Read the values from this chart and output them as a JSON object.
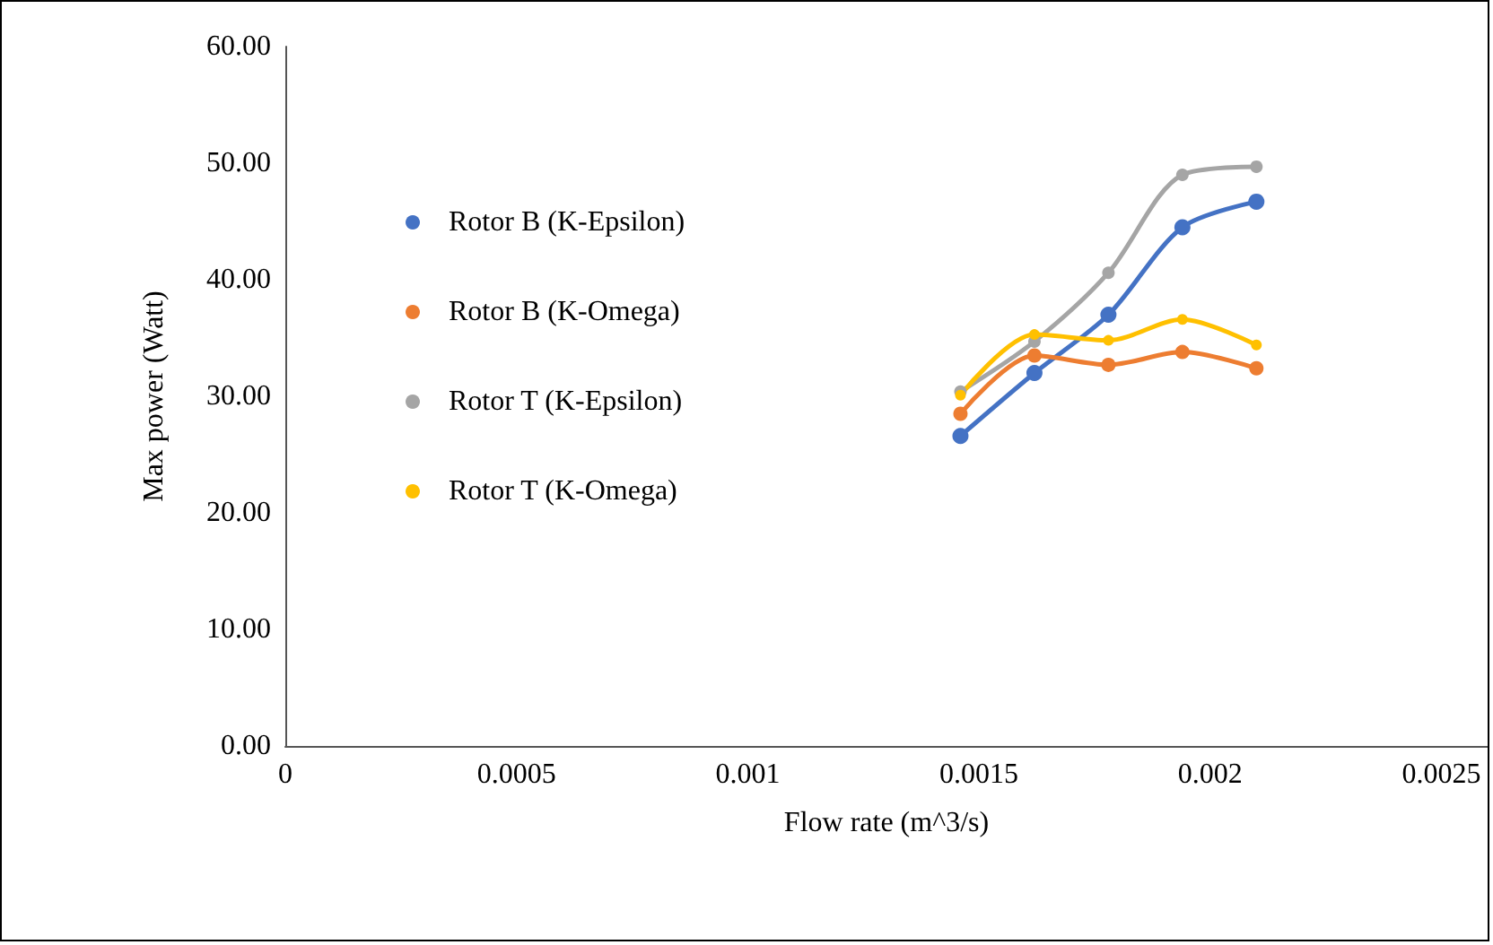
{
  "chart_data": {
    "type": "line",
    "xlabel": "Flow rate (m^3/s)",
    "ylabel": "Max power (Watt)",
    "x": [
      0.00146,
      0.00162,
      0.00178,
      0.00194,
      0.0021
    ],
    "series": [
      {
        "name": "Rotor B (K-Epsilon)",
        "color": "#4472c4",
        "values": [
          26.6,
          32.0,
          37.0,
          44.5,
          46.7
        ]
      },
      {
        "name": "Rotor B (K-Omega)",
        "color": "#ed7d31",
        "values": [
          28.5,
          33.5,
          32.7,
          33.8,
          32.4
        ]
      },
      {
        "name": "Rotor T (K-Epsilon)",
        "color": "#a5a5a5",
        "values": [
          30.4,
          34.7,
          40.6,
          49.0,
          49.7
        ]
      },
      {
        "name": "Rotor T (K-Omega)",
        "color": "#ffc000",
        "values": [
          30.1,
          35.3,
          34.8,
          36.6,
          34.4
        ]
      }
    ],
    "xlim": [
      0,
      0.0026
    ],
    "xticks": [
      0,
      0.0005,
      0.001,
      0.0015,
      0.002,
      0.0025
    ],
    "ylim": [
      0,
      60
    ],
    "yticks": [
      {
        "value": 0,
        "label": "0.00"
      },
      {
        "value": 10,
        "label": "10.00"
      },
      {
        "value": 20,
        "label": "20.00"
      },
      {
        "value": 30,
        "label": "30.00"
      },
      {
        "value": 40,
        "label": "40.00"
      },
      {
        "value": 50,
        "label": "50.00"
      },
      {
        "value": 60,
        "label": "60.00"
      }
    ],
    "grid": false,
    "legend": "left",
    "marker": "circle",
    "line_style": "solid"
  }
}
